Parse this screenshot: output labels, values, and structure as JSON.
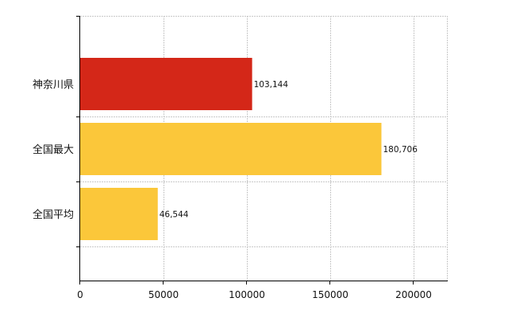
{
  "chart_data": {
    "type": "bar",
    "orientation": "horizontal",
    "categories": [
      "神奈川県",
      "全国最大",
      "全国平均"
    ],
    "values": [
      103144,
      180706,
      46544
    ],
    "data_labels": [
      "103,144",
      "180,706",
      "46,544"
    ],
    "bar_colors": [
      "#d42718",
      "#fbc73a",
      "#fbc73a"
    ],
    "xlim": [
      0,
      220000
    ],
    "x_ticks": [
      0,
      50000,
      100000,
      150000,
      200000
    ],
    "x_tick_labels": [
      "0",
      "50000",
      "100000",
      "150000",
      "200000"
    ],
    "grid": true,
    "title": "",
    "xlabel": "",
    "ylabel": ""
  }
}
